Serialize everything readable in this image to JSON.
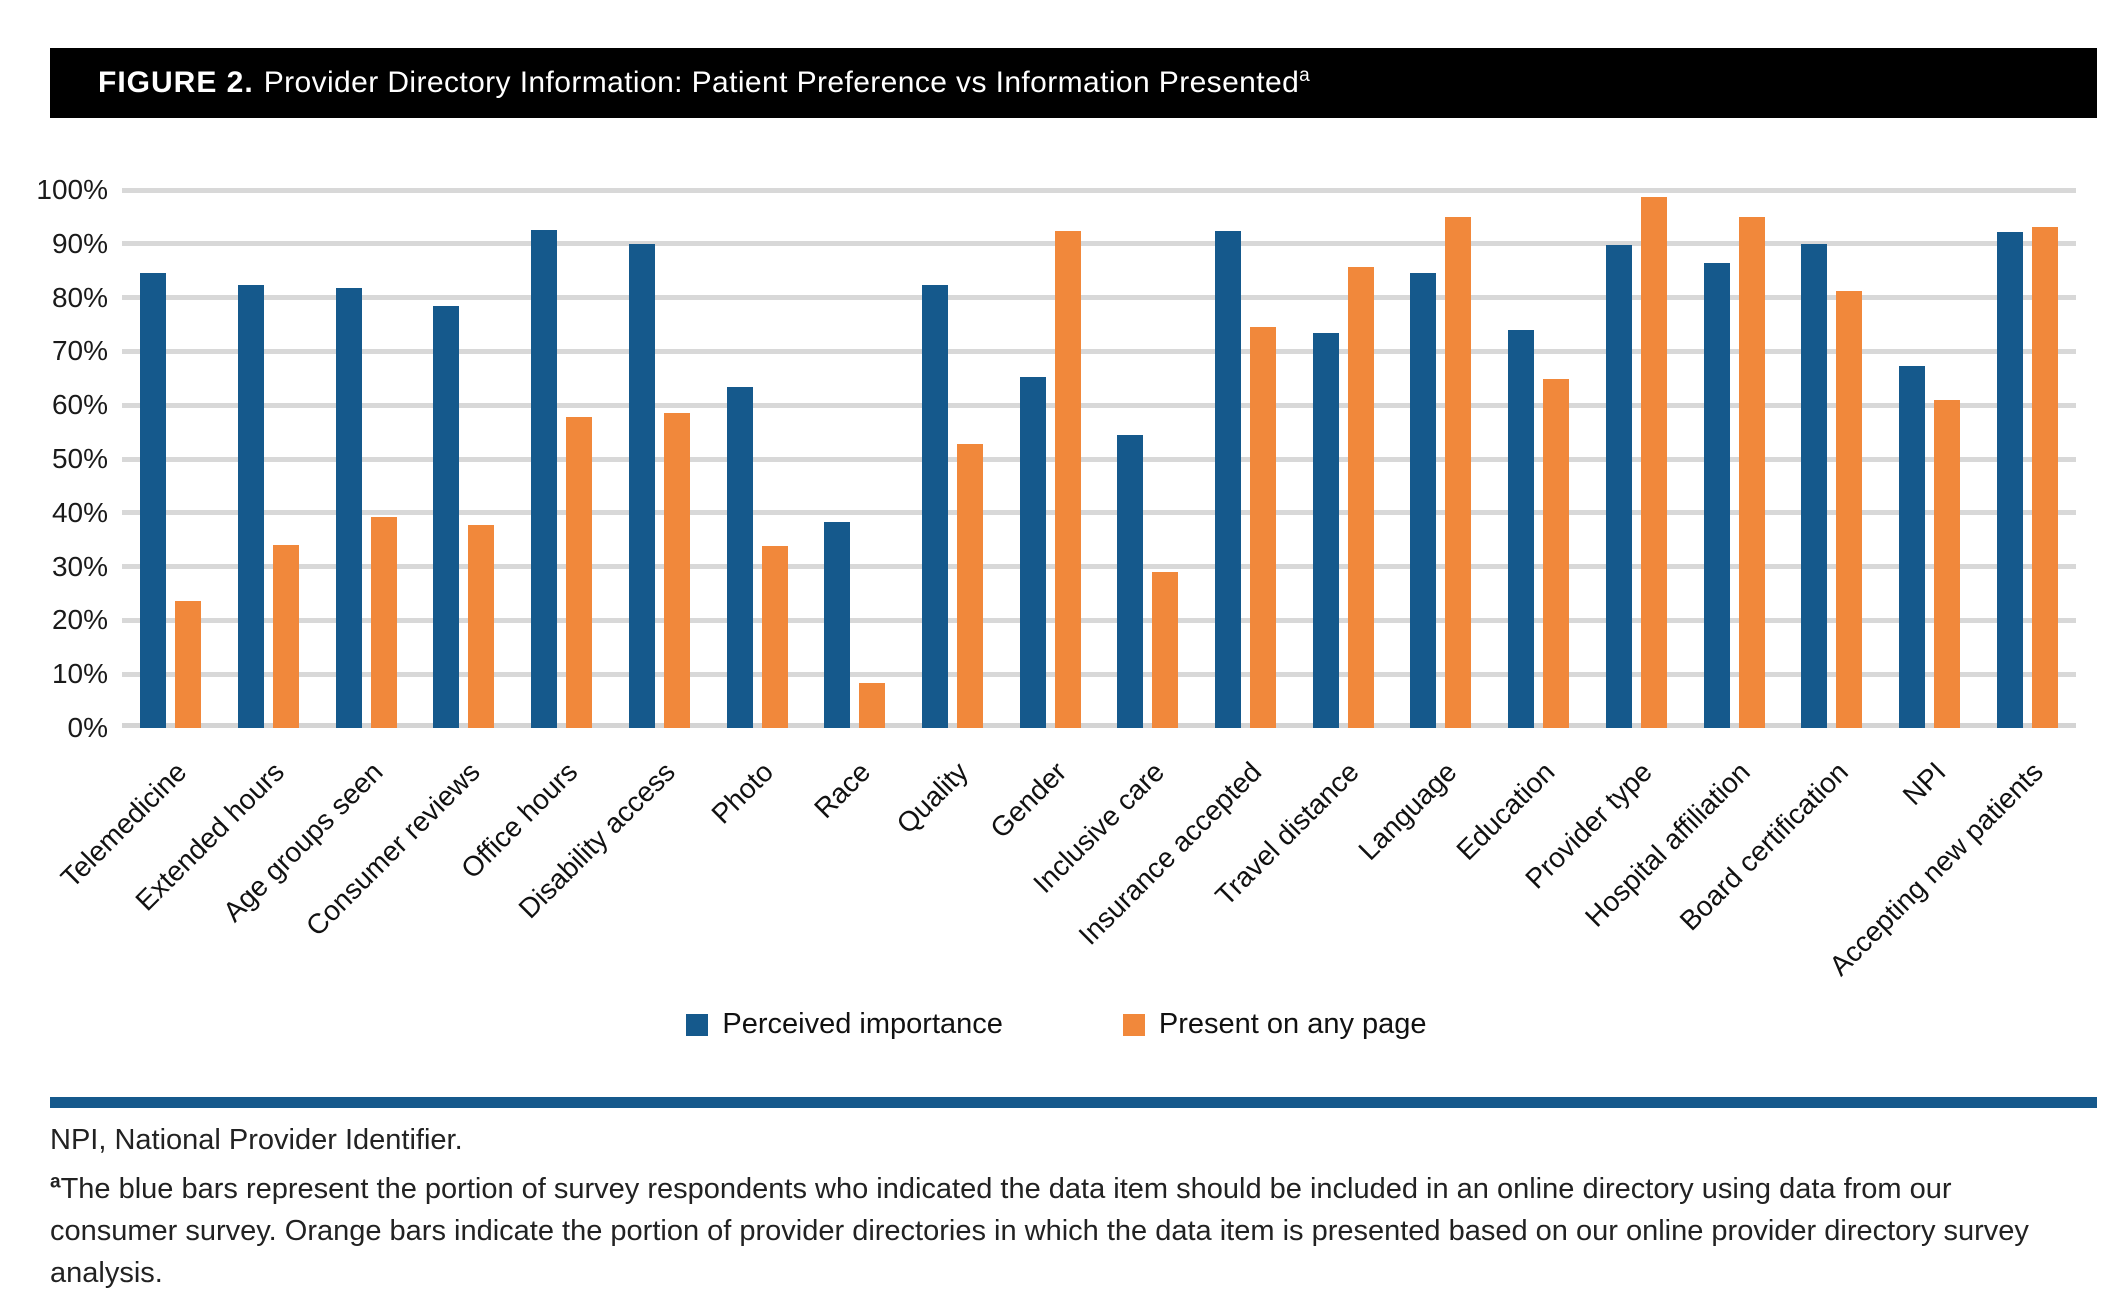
{
  "title": {
    "prefix": "FIGURE 2.",
    "text": "Provider Directory Information: Patient Preference vs Information Presented",
    "superscript": "a"
  },
  "legend": [
    {
      "label": "Perceived importance",
      "color": "#15598c"
    },
    {
      "label": "Present on any page",
      "color": "#f1883b"
    }
  ],
  "footer": {
    "abbreviation_note": "NPI, National Provider Identifier.",
    "footnote_superscript": "a",
    "footnote_text": "The blue bars represent the portion of survey respondents who indicated the data item should be included in an online directory using data from our consumer survey. Orange bars indicate the portion of provider directories in which the data item is presented based on our online provider directory survey analysis."
  },
  "colors": {
    "blue": "#15598c",
    "orange": "#f1883b",
    "gridline": "#d8d8d8",
    "title_bar": "#000000",
    "divider": "#15598c"
  },
  "chart_data": {
    "type": "bar",
    "title": "Provider Directory Information: Patient Preference vs Information Presented",
    "categories": [
      "Telemedicine",
      "Extended hours",
      "Age groups seen",
      "Consumer reviews",
      "Office hours",
      "Disability access",
      "Photo",
      "Race",
      "Quality",
      "Gender",
      "Inclusive care",
      "Insurance accepted",
      "Travel distance",
      "Language",
      "Education",
      "Provider type",
      "Hospital affiliation",
      "Board certification",
      "NPI",
      "Accepting new patients"
    ],
    "series": [
      {
        "name": "Perceived importance",
        "color": "#15598c",
        "values": [
          84.5,
          82.4,
          81.7,
          78.4,
          92.6,
          90.0,
          63.3,
          38.2,
          82.3,
          65.2,
          54.4,
          92.4,
          73.5,
          84.6,
          73.9,
          89.8,
          86.4,
          90.0,
          67.3,
          92.2
        ]
      },
      {
        "name": "Present on any page",
        "color": "#f1883b",
        "values": [
          23.6,
          34.0,
          39.3,
          37.8,
          57.8,
          58.6,
          33.8,
          8.3,
          52.7,
          92.3,
          29.0,
          74.5,
          85.7,
          95.0,
          64.9,
          98.7,
          95.0,
          81.3,
          61.0,
          93.1
        ]
      }
    ],
    "xlabel": "",
    "ylabel": "",
    "ylim": [
      0,
      100
    ],
    "y_ticks": [
      "0%",
      "10%",
      "20%",
      "30%",
      "40%",
      "50%",
      "60%",
      "70%",
      "80%",
      "90%",
      "100%"
    ],
    "grid": true,
    "legend_position": "bottom"
  }
}
